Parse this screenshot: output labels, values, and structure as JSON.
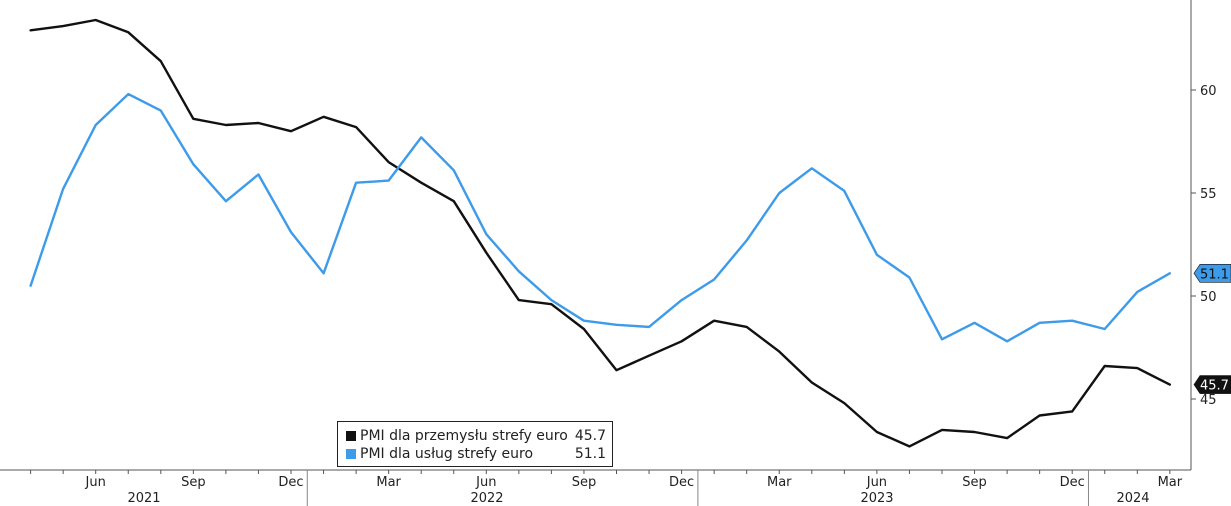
{
  "chart_data": {
    "type": "line",
    "title": "",
    "xlabel": "",
    "ylabel": "",
    "x": [
      "2021-04",
      "2021-05",
      "2021-06",
      "2021-07",
      "2021-08",
      "2021-09",
      "2021-10",
      "2021-11",
      "2021-12",
      "2022-01",
      "2022-02",
      "2022-03",
      "2022-04",
      "2022-05",
      "2022-06",
      "2022-07",
      "2022-08",
      "2022-09",
      "2022-10",
      "2022-11",
      "2022-12",
      "2023-01",
      "2023-02",
      "2023-03",
      "2023-04",
      "2023-05",
      "2023-06",
      "2023-07",
      "2023-08",
      "2023-09",
      "2023-10",
      "2023-11",
      "2023-12",
      "2024-01",
      "2024-02",
      "2024-03"
    ],
    "month_ticks": [
      "Jun",
      "Sep",
      "Dec",
      "Mar",
      "Jun",
      "Sep",
      "Dec",
      "Mar",
      "Jun",
      "Sep",
      "Dec",
      "Mar"
    ],
    "year_labels": [
      "2021",
      "2022",
      "2023",
      "2024"
    ],
    "ylim": [
      41.5,
      64.5
    ],
    "y_ticks": [
      45,
      50,
      55,
      60
    ],
    "y_axis_position": "right",
    "grid": false,
    "legend_position": "bottom-center",
    "series": [
      {
        "name": "PMI dla przemysłu strefy euro",
        "color": "#111111",
        "last_value": "45.7",
        "values": [
          62.9,
          63.1,
          63.4,
          62.8,
          61.4,
          58.6,
          58.3,
          58.4,
          58.0,
          58.7,
          58.2,
          56.5,
          55.5,
          54.6,
          52.1,
          49.8,
          49.6,
          48.4,
          46.4,
          47.1,
          47.8,
          48.8,
          48.5,
          47.3,
          45.8,
          44.8,
          43.4,
          42.7,
          43.5,
          43.4,
          43.1,
          44.2,
          44.4,
          46.6,
          46.5,
          45.7
        ]
      },
      {
        "name": "PMI dla usług strefy euro",
        "color": "#3d9be9",
        "last_value": "51.1",
        "values": [
          50.5,
          55.2,
          58.3,
          59.8,
          59.0,
          56.4,
          54.6,
          55.9,
          53.1,
          51.1,
          55.5,
          55.6,
          57.7,
          56.1,
          53.0,
          51.2,
          49.8,
          48.8,
          48.6,
          48.5,
          49.8,
          50.8,
          52.7,
          55.0,
          56.2,
          55.1,
          52.0,
          50.9,
          47.9,
          48.7,
          47.8,
          48.7,
          48.8,
          48.4,
          50.2,
          51.1
        ]
      }
    ]
  },
  "legend": {
    "items": [
      {
        "name": "PMI dla przemysłu strefy euro",
        "value": "45.7",
        "color": "#111111"
      },
      {
        "name": "PMI dla usług strefy euro",
        "value": "51.1",
        "color": "#3d9be9"
      }
    ]
  }
}
